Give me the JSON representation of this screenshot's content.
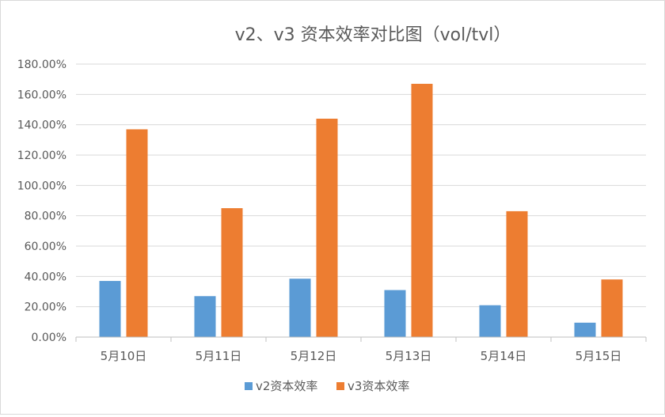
{
  "chart_data": {
    "type": "bar",
    "title": "v2、v3 资本效率对比图（vol/tvl）",
    "xlabel": "",
    "ylabel": "",
    "categories": [
      "5月10日",
      "5月11日",
      "5月12日",
      "5月13日",
      "5月14日",
      "5月15日"
    ],
    "series": [
      {
        "name": "v2资本效率",
        "color": "#5B9BD5",
        "values": [
          37,
          27,
          38.5,
          31,
          21,
          9.5
        ]
      },
      {
        "name": "v3资本效率",
        "color": "#ED7D31",
        "values": [
          137,
          85,
          144,
          167,
          83,
          38
        ]
      }
    ],
    "ylim": [
      0,
      180
    ],
    "yticks": [
      0,
      20,
      40,
      60,
      80,
      100,
      120,
      140,
      160,
      180
    ],
    "ytick_labels": [
      "0.00%",
      "20.00%",
      "40.00%",
      "60.00%",
      "80.00%",
      "100.00%",
      "120.00%",
      "140.00%",
      "160.00%",
      "180.00%"
    ],
    "grid": true,
    "legend_position": "bottom"
  }
}
